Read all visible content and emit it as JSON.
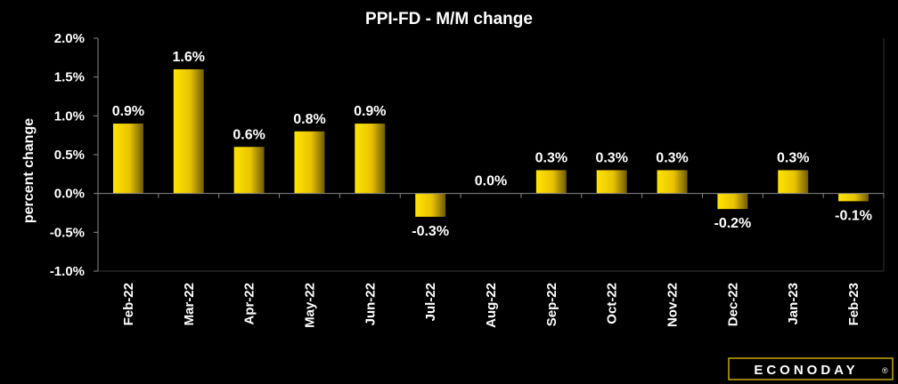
{
  "chart_data": {
    "type": "bar",
    "title": "PPI-FD - M/M change",
    "xlabel": "",
    "ylabel": "percent change",
    "categories": [
      "Feb-22",
      "Mar-22",
      "Apr-22",
      "May-22",
      "Jun-22",
      "Jul-22",
      "Aug-22",
      "Sep-22",
      "Oct-22",
      "Nov-22",
      "Dec-22",
      "Jan-23",
      "Feb-23"
    ],
    "values": [
      0.9,
      1.6,
      0.6,
      0.8,
      0.9,
      -0.3,
      0.0,
      0.3,
      0.3,
      0.3,
      -0.2,
      0.3,
      -0.1
    ],
    "data_labels": [
      "0.9%",
      "1.6%",
      "0.6%",
      "0.8%",
      "0.9%",
      "-0.3%",
      "0.0%",
      "0.3%",
      "0.3%",
      "0.3%",
      "-0.2%",
      "0.3%",
      "-0.1%"
    ],
    "ylim": [
      -1.0,
      2.0
    ],
    "yticks": [
      2.0,
      1.5,
      1.0,
      0.5,
      0.0,
      -0.5,
      -1.0
    ],
    "ytick_labels": [
      "2.0%",
      "1.5%",
      "1.0%",
      "0.5%",
      "0.0%",
      "-0.5%",
      "-1.0%"
    ],
    "grid": false,
    "legend": "none",
    "colors": {
      "background": "#000000",
      "bar_light": "#FFE400",
      "bar_dark": "#6E5A00",
      "axis": "#888888",
      "text": "#FFFFFF",
      "logo_border": "#C8A800",
      "logo_text": "#D4B000"
    }
  },
  "logo": {
    "text": "ECONODAY",
    "mark": "®"
  }
}
